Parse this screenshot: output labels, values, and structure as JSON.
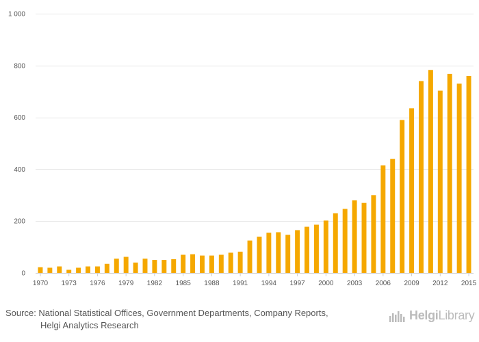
{
  "chart_data": {
    "type": "bar",
    "title": "",
    "xlabel": "",
    "ylabel": "",
    "ylim": [
      0,
      1000
    ],
    "yticks": [
      0,
      200,
      400,
      600,
      800,
      1000
    ],
    "ytick_labels": [
      "0",
      "200",
      "400",
      "600",
      "800",
      "1 000"
    ],
    "categories": [
      "1970",
      "1971",
      "1972",
      "1973",
      "1974",
      "1975",
      "1976",
      "1977",
      "1978",
      "1979",
      "1980",
      "1981",
      "1982",
      "1983",
      "1984",
      "1985",
      "1986",
      "1987",
      "1988",
      "1989",
      "1990",
      "1991",
      "1992",
      "1993",
      "1994",
      "1995",
      "1996",
      "1997",
      "1998",
      "1999",
      "2000",
      "2001",
      "2002",
      "2003",
      "2004",
      "2005",
      "2006",
      "2007",
      "2008",
      "2009",
      "2010",
      "2011",
      "2012",
      "2013",
      "2014",
      "2015"
    ],
    "xtick_labels": [
      "1970",
      "1973",
      "1976",
      "1979",
      "1982",
      "1985",
      "1988",
      "1991",
      "1994",
      "1997",
      "2000",
      "2003",
      "2006",
      "2009",
      "2012",
      "2015"
    ],
    "values": [
      22,
      20,
      25,
      12,
      20,
      25,
      25,
      35,
      55,
      62,
      40,
      55,
      50,
      50,
      53,
      70,
      72,
      67,
      67,
      70,
      78,
      82,
      125,
      140,
      155,
      157,
      147,
      165,
      178,
      186,
      202,
      230,
      247,
      280,
      270,
      300,
      415,
      440,
      590,
      635,
      740,
      783,
      703,
      768,
      730,
      760
    ],
    "color": "#f5a800",
    "grid": true
  },
  "source": {
    "line1": "Source: National Statistical Offices, Government Departments, Company Reports,",
    "line2": "Helgi Analytics Research"
  },
  "logo": {
    "brand_bold": "Helgi",
    "brand_light": "Library",
    "color": "#bbbbbb"
  }
}
